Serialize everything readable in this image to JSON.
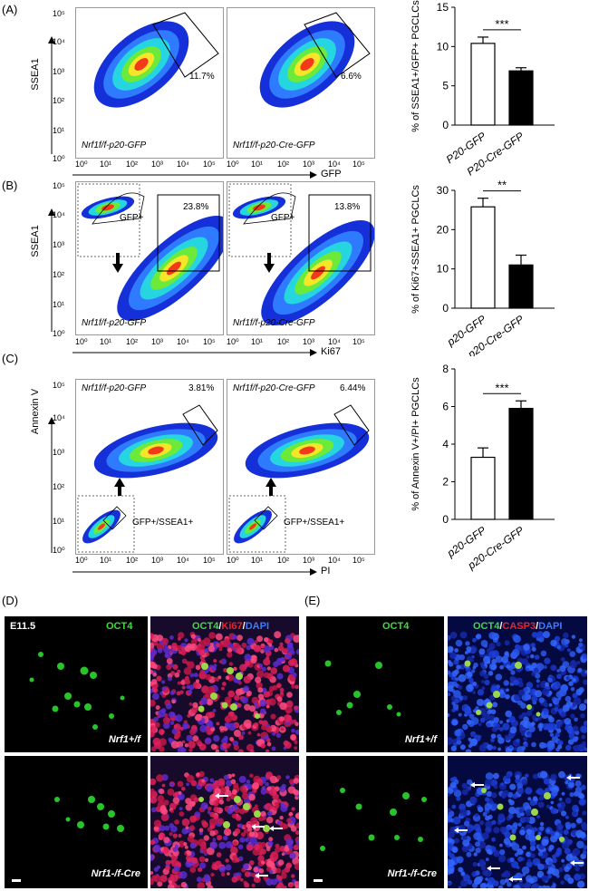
{
  "panels": {
    "A": {
      "label": "(A)",
      "ylabel": "SSEA1",
      "xlabel": "GFP",
      "yticks": [
        "10⁵",
        "10⁴",
        "10³",
        "10²",
        "10¹",
        "10⁰"
      ],
      "xticks": [
        "10⁰",
        "10¹",
        "10²",
        "10³",
        "10⁴",
        "10⁵"
      ],
      "plots": [
        {
          "sample": "Nrf1f/f-p20-GFP",
          "pct": "11.7%"
        },
        {
          "sample": "Nrf1f/f-p20-Cre-GFP",
          "pct": "6.6%"
        }
      ]
    },
    "B": {
      "label": "(B)",
      "ylabel": "SSEA1",
      "xlabel": "Ki67",
      "yticks": [
        "10⁵",
        "10⁴",
        "10³",
        "10²",
        "10¹",
        "10⁰"
      ],
      "xticks": [
        "10⁰",
        "10¹",
        "10²",
        "10³",
        "10⁴",
        "10⁵"
      ],
      "gate_label": "GFP+",
      "plots": [
        {
          "sample": "Nrf1f/f-p20-GFP",
          "pct": "23.8%"
        },
        {
          "sample": "Nrf1f/f-p20-Cre-GFP",
          "pct": "13.8%"
        }
      ]
    },
    "C": {
      "label": "(C)",
      "ylabel": "Annexin V",
      "xlabel": "PI",
      "yticks": [
        "10⁵",
        "10⁴",
        "10³",
        "10²",
        "10¹",
        "10⁰"
      ],
      "xticks": [
        "10⁰",
        "10¹",
        "10²",
        "10³",
        "10⁴",
        "10⁵"
      ],
      "gate_label": "GFP+/SSEA1+",
      "plots": [
        {
          "sample": "Nrf1f/f-p20-GFP",
          "pct": "3.81%"
        },
        {
          "sample": "Nrf1f/f-p20-Cre-GFP",
          "pct": "6.44%"
        }
      ]
    },
    "D": {
      "label": "(D)",
      "stage": "E11.5",
      "channel_left": "OCT4",
      "channel_right": [
        "OCT4",
        "/",
        "Ki67",
        "/",
        "DAPI"
      ],
      "genotype_top": "Nrf1+/f",
      "genotype_bottom": "Nrf1-/f-Cre"
    },
    "E": {
      "label": "(E)",
      "channel_left": "OCT4",
      "channel_right": [
        "OCT4",
        "/",
        "CASP3",
        "/",
        "DAPI"
      ],
      "genotype_top": "Nrf1+/f",
      "genotype_bottom": "Nrf1-/f-Cre"
    }
  },
  "colors": {
    "green": "#3fdc3f",
    "red": "#e8232f",
    "blue": "#3a7bff"
  },
  "chart_data": [
    {
      "type": "bar",
      "ylabel": "% of SSEA1+/GFP+ PGCLCs",
      "categories": [
        "P20-GFP",
        "P20-Cre-GFP"
      ],
      "values": [
        10.4,
        6.9
      ],
      "errors": [
        0.8,
        0.4
      ],
      "fill": [
        "#ffffff",
        "#000000"
      ],
      "ylim": [
        0,
        15
      ],
      "yticks": [
        0,
        5,
        10,
        15
      ],
      "significance": "***"
    },
    {
      "type": "bar",
      "ylabel": "% of Ki67+SSEA1+ PGCLCs",
      "categories": [
        "p20-GFP",
        "p20-Cre-GFP"
      ],
      "values": [
        25.8,
        11.0
      ],
      "errors": [
        2.2,
        2.5
      ],
      "fill": [
        "#ffffff",
        "#000000"
      ],
      "ylim": [
        0,
        30
      ],
      "yticks": [
        0,
        10,
        20,
        30
      ],
      "significance": "**"
    },
    {
      "type": "bar",
      "ylabel": "% of Annexin V+/PI+ PGCLCs",
      "categories": [
        "p20-GFP",
        "p20-Cre-GFP"
      ],
      "values": [
        3.3,
        5.9
      ],
      "errors": [
        0.5,
        0.4
      ],
      "fill": [
        "#ffffff",
        "#000000"
      ],
      "ylim": [
        0,
        8
      ],
      "yticks": [
        0,
        2,
        4,
        6,
        8
      ],
      "significance": "***"
    }
  ]
}
